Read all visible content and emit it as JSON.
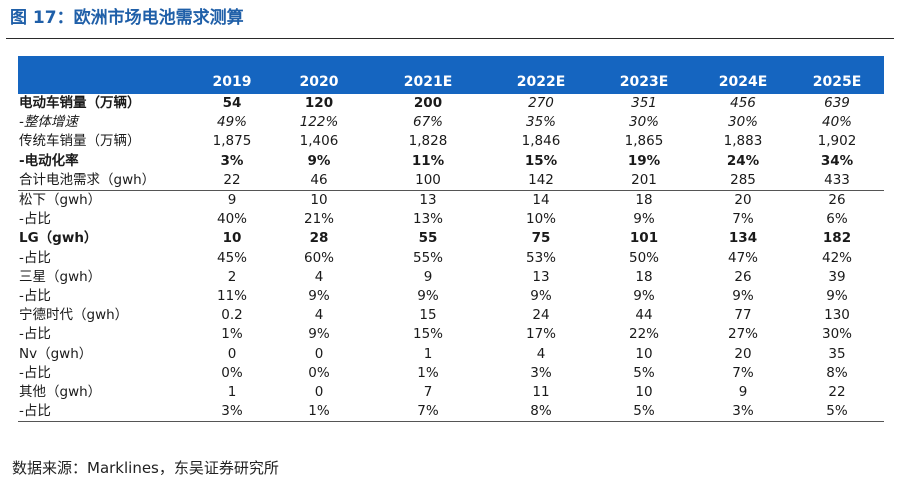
{
  "title": "图 17：欧洲市场电池需求测算",
  "source": "数据来源：Marklines，东吴证券研究所",
  "table": {
    "columns": [
      "",
      "2019",
      "2020",
      "2021E",
      "2022E",
      "2023E",
      "2024E",
      "2025E"
    ],
    "rows": [
      {
        "label": "电动车销量（万辆）",
        "style": "bold",
        "values": [
          "54",
          "120",
          "200",
          "270",
          "351",
          "456",
          "639"
        ],
        "italic_from": 3
      },
      {
        "label": "-整体增速",
        "style": "italic",
        "values": [
          "49%",
          "122%",
          "67%",
          "35%",
          "30%",
          "30%",
          "40%"
        ]
      },
      {
        "label": "传统车销量（万辆）",
        "style": "normal",
        "values": [
          "1,875",
          "1,406",
          "1,828",
          "1,846",
          "1,865",
          "1,883",
          "1,902"
        ]
      },
      {
        "label": "-电动化率",
        "style": "bold",
        "values": [
          "3%",
          "9%",
          "11%",
          "15%",
          "19%",
          "24%",
          "34%"
        ]
      },
      {
        "label": "合计电池需求（gwh）",
        "style": "normal",
        "sep": true,
        "values": [
          "22",
          "46",
          "100",
          "142",
          "201",
          "285",
          "433"
        ]
      },
      {
        "label": "松下（gwh）",
        "style": "normal",
        "values": [
          "9",
          "10",
          "13",
          "14",
          "18",
          "20",
          "26"
        ]
      },
      {
        "label": "-占比",
        "style": "normal",
        "values": [
          "40%",
          "21%",
          "13%",
          "10%",
          "9%",
          "7%",
          "6%"
        ]
      },
      {
        "label": "LG（gwh）",
        "style": "bold",
        "values": [
          "10",
          "28",
          "55",
          "75",
          "101",
          "134",
          "182"
        ]
      },
      {
        "label": "-占比",
        "style": "normal",
        "values": [
          "45%",
          "60%",
          "55%",
          "53%",
          "50%",
          "47%",
          "42%"
        ]
      },
      {
        "label": "三星（gwh）",
        "style": "normal",
        "values": [
          "2",
          "4",
          "9",
          "13",
          "18",
          "26",
          "39"
        ]
      },
      {
        "label": "-占比",
        "style": "normal",
        "values": [
          "11%",
          "9%",
          "9%",
          "9%",
          "9%",
          "9%",
          "9%"
        ]
      },
      {
        "label": "宁德时代（gwh）",
        "style": "normal",
        "values": [
          "0.2",
          "4",
          "15",
          "24",
          "44",
          "77",
          "130"
        ]
      },
      {
        "label": "-占比",
        "style": "normal",
        "values": [
          "1%",
          "9%",
          "15%",
          "17%",
          "22%",
          "27%",
          "30%"
        ]
      },
      {
        "label": "Nv（gwh）",
        "style": "normal",
        "values": [
          "0",
          "0",
          "1",
          "4",
          "10",
          "20",
          "35"
        ]
      },
      {
        "label": "-占比",
        "style": "normal",
        "values": [
          "0%",
          "0%",
          "1%",
          "3%",
          "5%",
          "7%",
          "8%"
        ]
      },
      {
        "label": "其他（gwh）",
        "style": "normal",
        "values": [
          "1",
          "0",
          "7",
          "11",
          "10",
          "9",
          "22"
        ]
      },
      {
        "label": "-占比",
        "style": "normal",
        "last": true,
        "values": [
          "3%",
          "1%",
          "7%",
          "8%",
          "5%",
          "3%",
          "5%"
        ]
      }
    ]
  }
}
